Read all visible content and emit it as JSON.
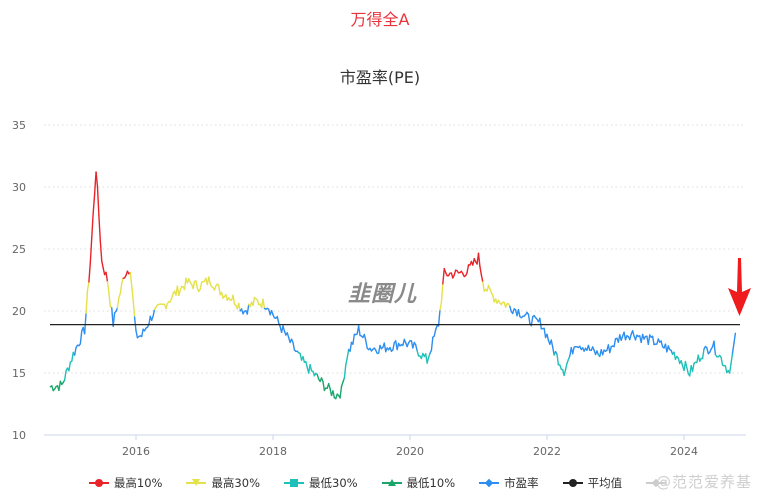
{
  "header": {
    "title": "万得全A",
    "subtitle": "市盈率(PE)"
  },
  "colors": {
    "top10": "#e8232a",
    "top30": "#e5e14b",
    "low30": "#1fc0b8",
    "low10": "#1aa66a",
    "pe": "#2c8ef0",
    "avg": "#222222",
    "grid": "#dddddd",
    "arrow": "#ee1c1c"
  },
  "legend": [
    {
      "label": "最高10%",
      "marker": "circle",
      "color": "#e8232a"
    },
    {
      "label": "最高30%",
      "marker": "triangle-down",
      "color": "#e5e14b"
    },
    {
      "label": "最低30%",
      "marker": "square",
      "color": "#1fc0b8"
    },
    {
      "label": "最低10%",
      "marker": "triangle-up",
      "color": "#1aa66a"
    },
    {
      "label": "市盈率",
      "marker": "diamond",
      "color": "#2c8ef0"
    },
    {
      "label": "平均值",
      "marker": "circle",
      "color": "#222222"
    },
    {
      "label": "",
      "marker": "diamond",
      "color": "#cccccc"
    }
  ],
  "watermark": "@范范爱养基",
  "logo": "韭圈儿",
  "chart_data": {
    "type": "line",
    "title": "万得全A",
    "subtitle": "市盈率(PE)",
    "xlabel": "",
    "ylabel": "",
    "ylim": [
      10,
      35
    ],
    "yticks": [
      10,
      15,
      20,
      25,
      30,
      35
    ],
    "xticks": [
      "2016",
      "2018",
      "2020",
      "2022",
      "2024"
    ],
    "grid": "horizontal dotted",
    "legend_position": "bottom",
    "average": 18.9,
    "series": [
      {
        "name": "市盈率",
        "x": [
          "2014-10",
          "2014-12",
          "2015-02",
          "2015-04",
          "2015-05",
          "2015-06",
          "2015-07",
          "2015-08",
          "2015-09",
          "2015-11",
          "2015-12",
          "2016-01",
          "2016-02",
          "2016-04",
          "2016-06",
          "2016-08",
          "2016-10",
          "2016-12",
          "2017-02",
          "2017-04",
          "2017-06",
          "2017-08",
          "2017-10",
          "2017-12",
          "2018-02",
          "2018-04",
          "2018-06",
          "2018-08",
          "2018-10",
          "2018-12",
          "2019-01",
          "2019-02",
          "2019-04",
          "2019-06",
          "2019-08",
          "2019-10",
          "2019-12",
          "2020-02",
          "2020-04",
          "2020-06",
          "2020-07",
          "2020-09",
          "2020-11",
          "2021-01",
          "2021-02",
          "2021-04",
          "2021-06",
          "2021-08",
          "2021-10",
          "2021-12",
          "2022-02",
          "2022-04",
          "2022-06",
          "2022-08",
          "2022-10",
          "2022-12",
          "2023-02",
          "2023-04",
          "2023-06",
          "2023-08",
          "2023-10",
          "2023-12",
          "2024-02",
          "2024-04",
          "2024-06",
          "2024-08",
          "2024-09",
          "2024-10"
        ],
        "values": [
          13.9,
          14.0,
          16.5,
          18.5,
          24.0,
          31.5,
          24.0,
          22.5,
          19.0,
          23.0,
          23.5,
          18.0,
          18.0,
          19.8,
          20.5,
          21.5,
          22.3,
          22.0,
          22.5,
          21.5,
          21.0,
          20.0,
          20.8,
          20.5,
          19.0,
          17.5,
          16.0,
          15.0,
          14.0,
          13.2,
          13.5,
          16.5,
          18.5,
          17.0,
          17.0,
          17.2,
          17.5,
          17.0,
          16.0,
          19.0,
          23.0,
          23.0,
          23.2,
          24.3,
          22.0,
          21.0,
          20.5,
          20.0,
          19.3,
          19.0,
          17.0,
          15.2,
          17.5,
          17.0,
          16.5,
          17.0,
          18.0,
          18.2,
          17.8,
          17.5,
          17.0,
          16.3,
          15.0,
          16.5,
          17.3,
          15.8,
          15.0,
          18.2
        ]
      },
      {
        "name": "平均值",
        "value": 18.9
      }
    ]
  }
}
